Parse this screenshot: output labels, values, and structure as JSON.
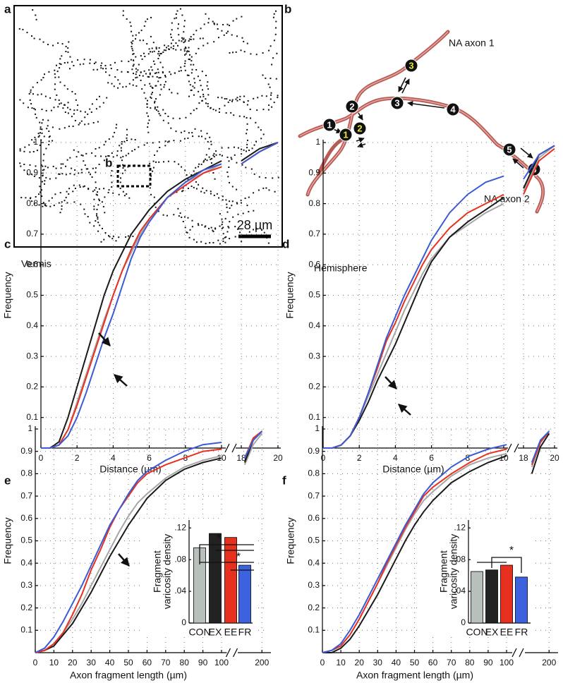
{
  "panel_a": {
    "label": "a",
    "inset_label": "b",
    "scale_label": "28 µm"
  },
  "panel_b": {
    "label": "b",
    "axon_labels": [
      "NA axon 1",
      "NA axon 2"
    ],
    "nodes": [
      {
        "label": "1",
        "highlight": false
      },
      {
        "label": "2",
        "highlight": false
      },
      {
        "label": "1",
        "highlight": true
      },
      {
        "label": "2",
        "highlight": true
      },
      {
        "label": "3",
        "highlight": true
      },
      {
        "label": "3",
        "highlight": false
      },
      {
        "label": "4",
        "highlight": false
      },
      {
        "label": "5",
        "highlight": false
      },
      {
        "label": "6",
        "highlight": false
      }
    ]
  },
  "chart_data": [
    {
      "type": "line",
      "label": "c",
      "title": "Vermis",
      "xlabel": "Distance (µm)",
      "ylabel": "Frequency",
      "x": [
        0,
        0.5,
        1,
        1.5,
        2,
        2.5,
        3,
        3.5,
        4,
        4.5,
        5,
        5.5,
        6,
        7,
        8,
        9,
        10,
        18,
        19,
        20
      ],
      "xlim": [
        0,
        10
      ],
      "xticks": [
        0,
        2,
        4,
        6,
        8,
        10
      ],
      "x2lim": [
        18,
        20
      ],
      "x2ticks": [
        18,
        20
      ],
      "ylim": [
        0,
        1
      ],
      "yticks": [
        0.1,
        0.2,
        0.3,
        0.4,
        0.5,
        0.6,
        0.7,
        0.8,
        0.9,
        1
      ],
      "grid": true,
      "series": [
        {
          "color": "#a6a6a6",
          "values": [
            0,
            0,
            0.01,
            0.06,
            0.15,
            0.24,
            0.33,
            0.42,
            0.5,
            0.58,
            0.64,
            0.7,
            0.75,
            0.82,
            0.87,
            0.9,
            0.93,
            0.93,
            0.97,
            1
          ]
        },
        {
          "color": "#1a1a1a",
          "values": [
            0,
            0,
            0.02,
            0.1,
            0.2,
            0.3,
            0.4,
            0.5,
            0.58,
            0.64,
            0.7,
            0.74,
            0.78,
            0.84,
            0.88,
            0.91,
            0.94,
            0.94,
            0.98,
            1
          ]
        },
        {
          "color": "#e8311f",
          "values": [
            0,
            0,
            0.01,
            0.06,
            0.14,
            0.23,
            0.32,
            0.41,
            0.5,
            0.58,
            0.65,
            0.71,
            0.75,
            0.82,
            0.86,
            0.9,
            0.92,
            0.93,
            0.97,
            1
          ]
        },
        {
          "color": "#3b5bd6",
          "values": [
            0,
            0,
            0.01,
            0.04,
            0.1,
            0.18,
            0.27,
            0.36,
            0.44,
            0.53,
            0.62,
            0.69,
            0.74,
            0.82,
            0.87,
            0.91,
            0.93,
            0.93,
            0.97,
            1
          ]
        }
      ]
    },
    {
      "type": "line",
      "label": "d",
      "title": "Hemisphere",
      "xlabel": "Distance (µm)",
      "ylabel": "Frequency",
      "x": [
        0,
        0.5,
        1,
        1.5,
        2,
        2.5,
        3,
        3.5,
        4,
        4.5,
        5,
        5.5,
        6,
        7,
        8,
        9,
        10,
        18,
        19,
        20
      ],
      "xlim": [
        0,
        10
      ],
      "xticks": [
        0,
        2,
        4,
        6,
        8,
        10
      ],
      "x2lim": [
        18,
        20
      ],
      "x2ticks": [
        18,
        20
      ],
      "ylim": [
        0,
        1
      ],
      "yticks": [
        0.1,
        0.2,
        0.3,
        0.4,
        0.5,
        0.6,
        0.7,
        0.8,
        0.9,
        1
      ],
      "grid": true,
      "series": [
        {
          "color": "#a6a6a6",
          "values": [
            0,
            0,
            0.01,
            0.04,
            0.1,
            0.17,
            0.24,
            0.31,
            0.38,
            0.45,
            0.51,
            0.57,
            0.62,
            0.69,
            0.73,
            0.77,
            0.8,
            0.84,
            0.95,
            0.99
          ]
        },
        {
          "color": "#1a1a1a",
          "values": [
            0,
            0,
            0.01,
            0.04,
            0.09,
            0.15,
            0.22,
            0.28,
            0.34,
            0.41,
            0.48,
            0.55,
            0.61,
            0.69,
            0.74,
            0.78,
            0.82,
            0.85,
            0.96,
            0.99
          ]
        },
        {
          "color": "#e8311f",
          "values": [
            0,
            0,
            0.01,
            0.04,
            0.1,
            0.18,
            0.26,
            0.35,
            0.41,
            0.48,
            0.54,
            0.6,
            0.65,
            0.72,
            0.77,
            0.8,
            0.83,
            0.83,
            0.94,
            0.98
          ]
        },
        {
          "color": "#3b5bd6",
          "values": [
            0,
            0,
            0.01,
            0.04,
            0.1,
            0.18,
            0.27,
            0.36,
            0.43,
            0.5,
            0.56,
            0.62,
            0.68,
            0.77,
            0.83,
            0.87,
            0.89,
            0.88,
            0.96,
            0.99
          ]
        }
      ]
    },
    {
      "type": "line",
      "label": "e",
      "xlabel": "Axon fragment length (µm)",
      "ylabel": "Frequency",
      "x": [
        0,
        5,
        10,
        15,
        20,
        25,
        30,
        35,
        40,
        45,
        50,
        55,
        60,
        70,
        80,
        90,
        100,
        186,
        193,
        200
      ],
      "xlim": [
        0,
        100
      ],
      "xticks": [
        0,
        10,
        20,
        30,
        40,
        50,
        60,
        70,
        80,
        90,
        100
      ],
      "x2lim": [
        185,
        205
      ],
      "x2ticks": [
        200
      ],
      "ylim": [
        0,
        1
      ],
      "yticks": [
        0.1,
        0.2,
        0.3,
        0.4,
        0.5,
        0.6,
        0.7,
        0.8,
        0.9,
        1
      ],
      "grid": true,
      "series": [
        {
          "color": "#a6a6a6",
          "values": [
            0,
            0.01,
            0.04,
            0.09,
            0.15,
            0.22,
            0.3,
            0.38,
            0.46,
            0.54,
            0.61,
            0.67,
            0.71,
            0.78,
            0.83,
            0.86,
            0.88,
            0.84,
            0.93,
            0.98
          ]
        },
        {
          "color": "#1a1a1a",
          "values": [
            0,
            0.01,
            0.03,
            0.08,
            0.13,
            0.2,
            0.27,
            0.35,
            0.43,
            0.5,
            0.57,
            0.63,
            0.69,
            0.77,
            0.82,
            0.85,
            0.87,
            0.85,
            0.95,
            0.99
          ]
        },
        {
          "color": "#e8311f",
          "values": [
            0,
            0.01,
            0.04,
            0.09,
            0.17,
            0.26,
            0.37,
            0.46,
            0.56,
            0.64,
            0.7,
            0.76,
            0.8,
            0.84,
            0.87,
            0.9,
            0.91,
            0.87,
            0.96,
            0.99
          ]
        },
        {
          "color": "#3b5bd6",
          "values": [
            0,
            0.02,
            0.07,
            0.14,
            0.22,
            0.3,
            0.39,
            0.48,
            0.57,
            0.64,
            0.71,
            0.77,
            0.81,
            0.86,
            0.9,
            0.93,
            0.94,
            0.87,
            0.95,
            0.99
          ]
        }
      ]
    },
    {
      "type": "line",
      "label": "f",
      "xlabel": "Axon fragment length (µm)",
      "ylabel": "Frequency",
      "x": [
        0,
        5,
        10,
        15,
        20,
        25,
        30,
        35,
        40,
        45,
        50,
        55,
        60,
        70,
        80,
        90,
        100,
        186,
        193,
        200
      ],
      "xlim": [
        0,
        100
      ],
      "xticks": [
        0,
        10,
        20,
        30,
        40,
        50,
        60,
        70,
        80,
        90,
        100
      ],
      "x2lim": [
        185,
        205
      ],
      "x2ticks": [
        200
      ],
      "ylim": [
        0,
        1
      ],
      "yticks": [
        0.1,
        0.2,
        0.3,
        0.4,
        0.5,
        0.6,
        0.7,
        0.8,
        0.9,
        1
      ],
      "grid": true,
      "series": [
        {
          "color": "#a6a6a6",
          "values": [
            0,
            0.01,
            0.03,
            0.08,
            0.15,
            0.23,
            0.31,
            0.39,
            0.47,
            0.55,
            0.62,
            0.68,
            0.72,
            0.79,
            0.84,
            0.87,
            0.89,
            0.83,
            0.94,
            0.99
          ]
        },
        {
          "color": "#1a1a1a",
          "values": [
            0,
            0,
            0.02,
            0.06,
            0.12,
            0.19,
            0.26,
            0.34,
            0.42,
            0.5,
            0.57,
            0.63,
            0.68,
            0.76,
            0.81,
            0.85,
            0.88,
            0.8,
            0.92,
            0.98
          ]
        },
        {
          "color": "#e8311f",
          "values": [
            0,
            0.01,
            0.03,
            0.08,
            0.15,
            0.23,
            0.31,
            0.4,
            0.48,
            0.56,
            0.63,
            0.7,
            0.74,
            0.8,
            0.85,
            0.89,
            0.91,
            0.84,
            0.94,
            0.99
          ]
        },
        {
          "color": "#3b5bd6",
          "values": [
            0,
            0.01,
            0.04,
            0.1,
            0.17,
            0.25,
            0.33,
            0.41,
            0.49,
            0.57,
            0.64,
            0.71,
            0.76,
            0.83,
            0.88,
            0.91,
            0.93,
            0.85,
            0.95,
            0.99
          ]
        }
      ]
    },
    {
      "type": "bar",
      "ylabel": [
        "Fragment",
        "varicosity density"
      ],
      "categories": [
        "CON",
        "EX",
        "EE",
        "FR"
      ],
      "values": [
        0.095,
        0.113,
        0.108,
        0.073
      ],
      "colors": [
        "#b8c0bb",
        "#222222",
        "#e8301f",
        "#3c62e0"
      ],
      "ylim": [
        0,
        0.13
      ],
      "yticks": [
        0,
        {
          "value": 0.04,
          "label": ".04"
        },
        {
          "value": 0.08,
          "label": ".08"
        },
        {
          "value": 0.12,
          "label": ".12"
        }
      ],
      "significance": [
        "*",
        "*"
      ]
    },
    {
      "type": "bar",
      "ylabel": [
        "Fragment",
        "varicosity density"
      ],
      "categories": [
        "CON",
        "EX",
        "EE",
        "FR"
      ],
      "values": [
        0.065,
        0.067,
        0.073,
        0.058
      ],
      "colors": [
        "#b8c0bb",
        "#222222",
        "#e8301f",
        "#3c62e0"
      ],
      "ylim": [
        0,
        0.13
      ],
      "yticks": [
        0,
        {
          "value": 0.04,
          "label": ".04"
        },
        {
          "value": 0.08,
          "label": ".08"
        },
        {
          "value": 0.12,
          "label": ".12"
        }
      ],
      "significance": [
        "*"
      ]
    }
  ]
}
